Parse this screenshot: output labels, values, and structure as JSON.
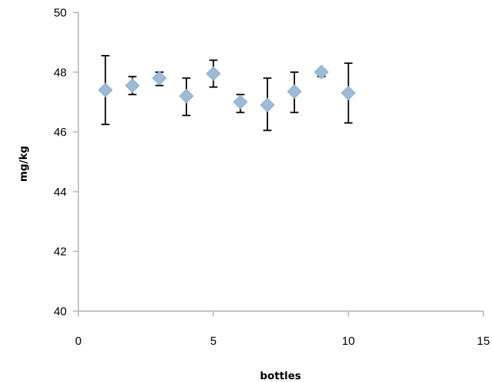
{
  "chart_data": {
    "type": "scatter",
    "title": "",
    "xlabel": "bottles",
    "ylabel": "mg/kg",
    "xlim": [
      0,
      15
    ],
    "ylim": [
      40,
      50
    ],
    "xticks": [
      0,
      5,
      10,
      15
    ],
    "yticks": [
      40,
      42,
      44,
      46,
      48,
      50
    ],
    "grid": false,
    "legend": "none",
    "marker": "diamond",
    "marker_color": "#9dbbd6",
    "errorbar_color": "#000000",
    "points": [
      {
        "x": 1,
        "y": 47.4,
        "err_low": 46.25,
        "err_high": 48.55
      },
      {
        "x": 2,
        "y": 47.55,
        "err_low": 47.25,
        "err_high": 47.85
      },
      {
        "x": 3,
        "y": 47.8,
        "err_low": 47.55,
        "err_high": 48.0
      },
      {
        "x": 4,
        "y": 47.2,
        "err_low": 46.55,
        "err_high": 47.8
      },
      {
        "x": 5,
        "y": 47.95,
        "err_low": 47.5,
        "err_high": 48.4
      },
      {
        "x": 6,
        "y": 47.0,
        "err_low": 46.65,
        "err_high": 47.25
      },
      {
        "x": 7,
        "y": 46.9,
        "err_low": 46.05,
        "err_high": 47.8
      },
      {
        "x": 8,
        "y": 47.35,
        "err_low": 46.65,
        "err_high": 48.0
      },
      {
        "x": 9,
        "y": 48.0,
        "err_low": 47.85,
        "err_high": 48.1
      },
      {
        "x": 10,
        "y": 47.3,
        "err_low": 46.3,
        "err_high": 48.3
      }
    ]
  }
}
